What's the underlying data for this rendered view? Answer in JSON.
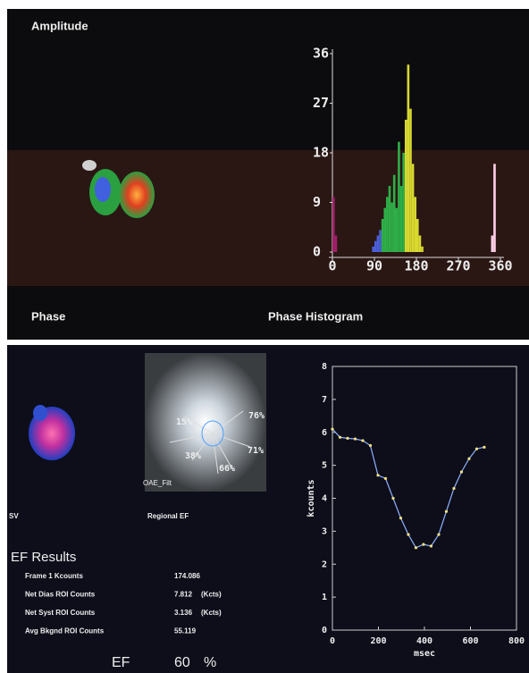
{
  "labels": {
    "amplitude": "Amplitude",
    "phase": "Phase",
    "sv": "SV",
    "regional_ef": "Regional EF",
    "filter": "OAE_Filt"
  },
  "roi_percent": [
    "15%",
    "76%",
    "71%",
    "66%",
    "38%"
  ],
  "ef_results": {
    "title": "EF Results",
    "rows": [
      [
        "Frame 1 Kcounts",
        "174.086",
        ""
      ],
      [
        "Net Dias ROI Counts",
        "7.812",
        "(Kcts)"
      ],
      [
        "Net Syst ROI Counts",
        "3.136",
        "(Kcts)"
      ],
      [
        "Avg Bkgnd ROI Counts",
        "55.119",
        ""
      ]
    ]
  },
  "ef": {
    "label": "EF",
    "value": "60",
    "unit": "%"
  },
  "chart_data": [
    {
      "type": "histogram",
      "title": "Phase Histogram",
      "bins": [
        0,
        5,
        10,
        15,
        20,
        25,
        30,
        35,
        40,
        45,
        50,
        55,
        60,
        65,
        70,
        75,
        80,
        85,
        90,
        95,
        100,
        105,
        110,
        115,
        120,
        125,
        130,
        135,
        140,
        145,
        150,
        155,
        160,
        165,
        170,
        175,
        180,
        185,
        190,
        195,
        200,
        205,
        210,
        215,
        220,
        225,
        230,
        235,
        240,
        245,
        250,
        255,
        260,
        265,
        270,
        275,
        280,
        285,
        290,
        295,
        300,
        305,
        310,
        315,
        320,
        325,
        330,
        335,
        340,
        345,
        350,
        355,
        360
      ],
      "counts": [
        10,
        3,
        0,
        0,
        0,
        0,
        0,
        0,
        0,
        0,
        0,
        0,
        0,
        0,
        0,
        0,
        0,
        1,
        2,
        3,
        4,
        6,
        8,
        10,
        12,
        9,
        14,
        8,
        20,
        12,
        18,
        24,
        34,
        26,
        16,
        10,
        6,
        3,
        1,
        0,
        0,
        0,
        0,
        0,
        0,
        0,
        0,
        0,
        0,
        0,
        0,
        0,
        0,
        0,
        0,
        0,
        0,
        0,
        0,
        0,
        0,
        0,
        0,
        0,
        0,
        0,
        0,
        0,
        3,
        16,
        0,
        0
      ],
      "xlim": [
        0,
        360
      ],
      "ylim": [
        0,
        36
      ],
      "xticks": [
        0,
        90,
        180,
        270,
        360
      ],
      "yticks": [
        0,
        9,
        18,
        27,
        36
      ],
      "colormap": [
        "#a0206a",
        "#4a5fd8",
        "#2fae48",
        "#d8d830",
        "#f08a20",
        "#ff9a40",
        "#ffd0e8"
      ]
    },
    {
      "type": "line",
      "xlabel": "msec",
      "ylabel": "kcounts",
      "x": [
        0,
        33,
        66,
        99,
        132,
        165,
        198,
        231,
        264,
        297,
        330,
        363,
        396,
        429,
        462,
        495,
        528,
        561,
        594,
        627,
        660
      ],
      "series": [
        {
          "color": "#8fb0ff",
          "values": [
            6.1,
            5.85,
            5.82,
            5.8,
            5.75,
            5.6,
            4.7,
            4.6,
            4.0,
            3.4,
            2.9,
            2.5,
            2.6,
            2.55,
            2.9,
            3.6,
            4.3,
            4.8,
            5.2,
            5.5,
            5.55
          ]
        }
      ],
      "xlim": [
        0,
        800
      ],
      "ylim": [
        0,
        8
      ],
      "xticks": [
        0,
        200,
        400,
        600,
        800
      ],
      "yticks": [
        0,
        1,
        2,
        3,
        4,
        5,
        6,
        7,
        8
      ]
    }
  ]
}
